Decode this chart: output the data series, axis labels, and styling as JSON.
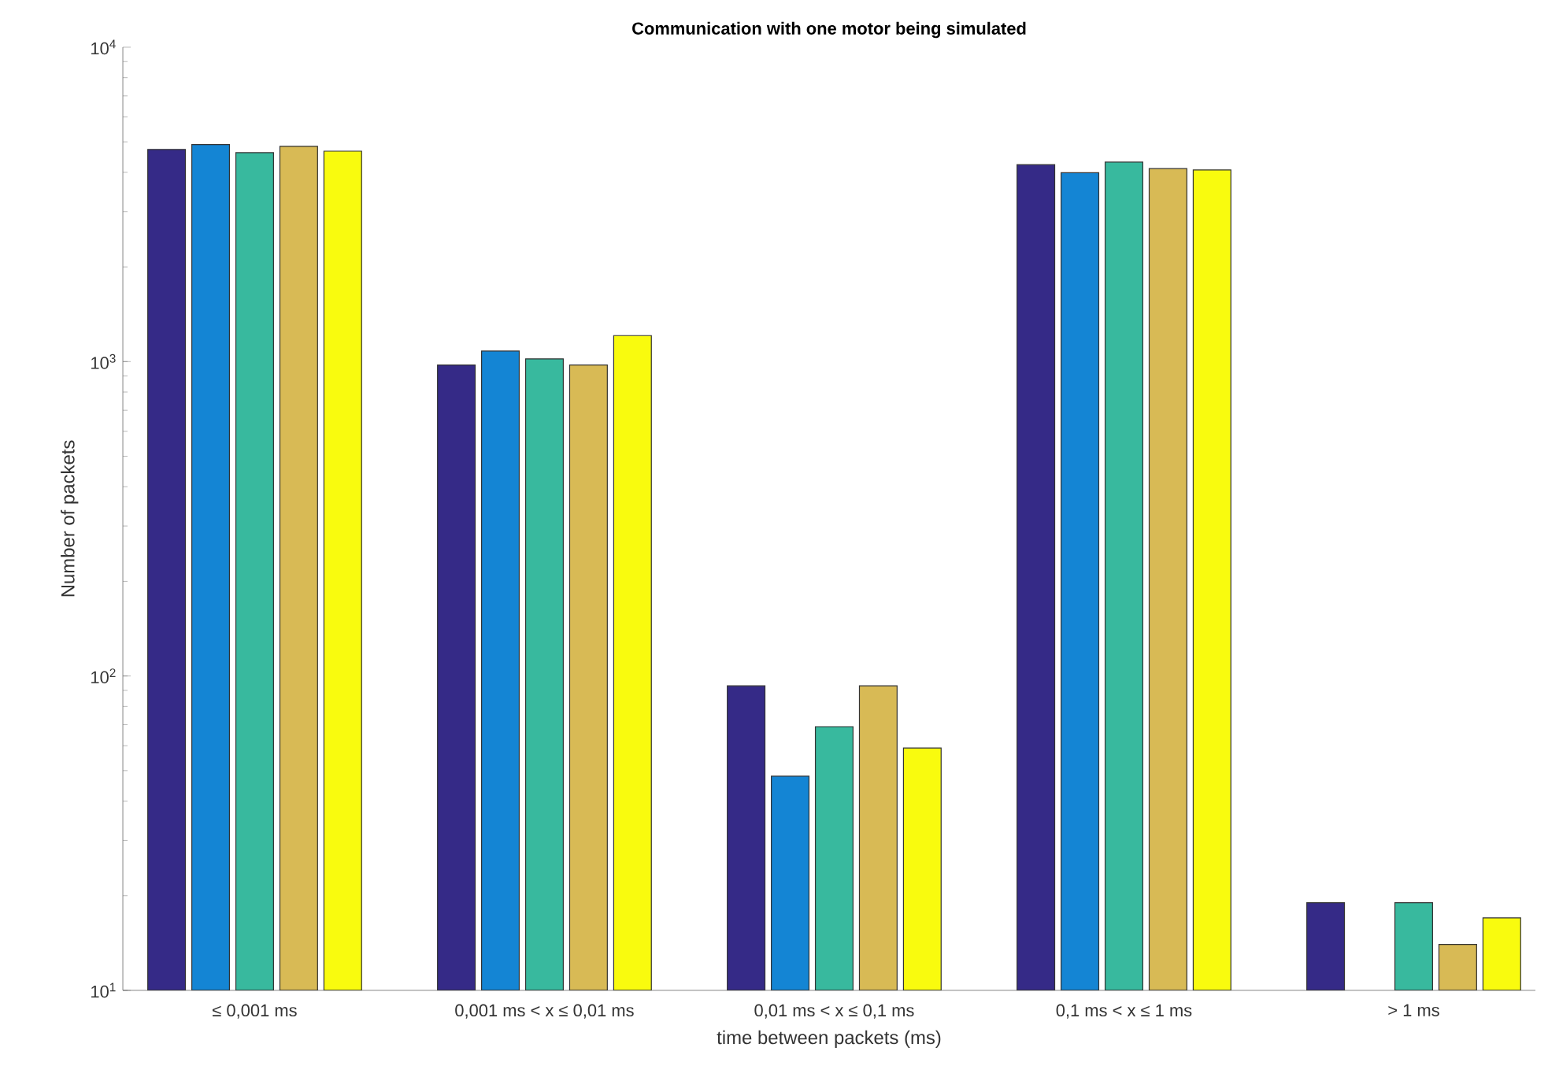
{
  "chart_data": {
    "type": "bar",
    "title": "Communication with one motor being simulated",
    "xlabel": "time between packets (ms)",
    "ylabel": "Number of packets",
    "log": "y",
    "ylim": [
      10,
      10000
    ],
    "yticks": [
      {
        "value": 10,
        "label": "10$^{1}$"
      },
      {
        "value": 100,
        "label": "10$^{2}$"
      },
      {
        "value": 1000,
        "label": "10$^{3}$"
      },
      {
        "value": 10000,
        "label": "10$^{4}$"
      }
    ],
    "categories": [
      "≤ 0,001 ms",
      "0,001 ms < x ≤ 0,01 ms",
      "0,01 ms < x ≤ 0,1 ms",
      "0,1 ms < x ≤ 1 ms",
      "> 1 ms"
    ],
    "series": [
      {
        "color": "#352a87",
        "values": [
          4730,
          975,
          93,
          4230,
          19
        ]
      },
      {
        "color": "#1485d4",
        "values": [
          4900,
          1080,
          48,
          3990,
          null
        ]
      },
      {
        "color": "#38b99e",
        "values": [
          4620,
          1020,
          69,
          4310,
          19
        ]
      },
      {
        "color": "#d8ba55",
        "values": [
          4840,
          975,
          93,
          4110,
          14
        ]
      },
      {
        "color": "#f9fb0e",
        "values": [
          4670,
          1210,
          59,
          4070,
          17
        ]
      }
    ],
    "grid": false
  }
}
